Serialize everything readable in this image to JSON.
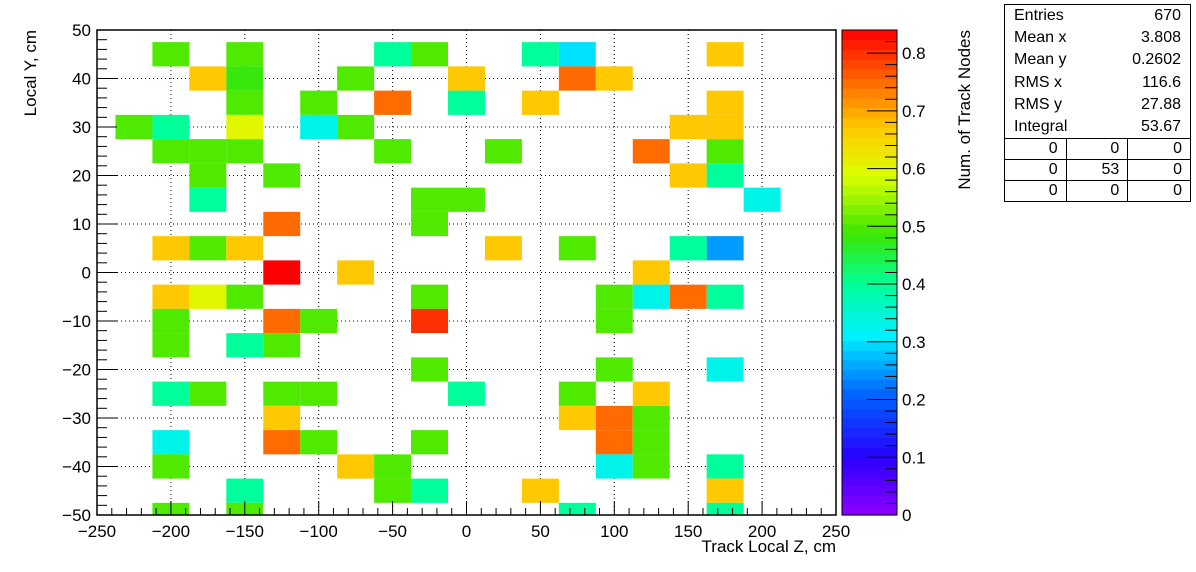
{
  "chart_data": {
    "type": "heatmap",
    "title": "",
    "xlabel": "Track Local Z, cm",
    "ylabel": "Local Y, cm",
    "zlabel": "Num. of Track Nodes",
    "xlim": [
      -250,
      250
    ],
    "ylim": [
      -50,
      50
    ],
    "zlim": [
      0,
      0.84
    ],
    "x_ticks": [
      -250,
      -200,
      -150,
      -100,
      -50,
      0,
      50,
      100,
      150,
      200,
      250
    ],
    "x_tick_labels": [
      "−250",
      "−200",
      "−150",
      "−100",
      "−50",
      "0",
      "50",
      "100",
      "150",
      "200",
      "250"
    ],
    "y_ticks": [
      50,
      40,
      30,
      20,
      10,
      0,
      -10,
      -20,
      -30,
      -40,
      -50
    ],
    "y_tick_labels": [
      "50",
      "40",
      "30",
      "20",
      "10",
      "0",
      "−10",
      "−20",
      "−30",
      "−40",
      "−50"
    ],
    "z_ticks": [
      0,
      0.1,
      0.2,
      0.3,
      0.4,
      0.5,
      0.6,
      0.7,
      0.8
    ],
    "z_tick_labels": [
      "0",
      "0.1",
      "0.2",
      "0.3",
      "0.4",
      "0.5",
      "0.6",
      "0.7",
      "0.8"
    ],
    "grid": true,
    "x_bin_edges": [
      -250,
      -225,
      -200,
      -175,
      -150,
      -125,
      -100,
      -75,
      -50,
      -25,
      0,
      25,
      50,
      75,
      100,
      125,
      150,
      175,
      200,
      225,
      250
    ],
    "y_bin_height": 5,
    "cells": [
      {
        "x": -200,
        "y": 45,
        "z": 0.5
      },
      {
        "x": -150,
        "y": 45,
        "z": 0.5
      },
      {
        "x": -50,
        "y": 45,
        "z": 0.4
      },
      {
        "x": -25,
        "y": 45,
        "z": 0.5
      },
      {
        "x": 50,
        "y": 45,
        "z": 0.4
      },
      {
        "x": 75,
        "y": 45,
        "z": 0.3
      },
      {
        "x": 175,
        "y": 45,
        "z": 0.67
      },
      {
        "x": -175,
        "y": 40,
        "z": 0.67
      },
      {
        "x": -150,
        "y": 40,
        "z": 0.48
      },
      {
        "x": -75,
        "y": 40,
        "z": 0.5
      },
      {
        "x": 0,
        "y": 40,
        "z": 0.67
      },
      {
        "x": 75,
        "y": 40,
        "z": 0.75
      },
      {
        "x": 100,
        "y": 40,
        "z": 0.67
      },
      {
        "x": -150,
        "y": 35,
        "z": 0.5
      },
      {
        "x": -100,
        "y": 35,
        "z": 0.5
      },
      {
        "x": -50,
        "y": 35,
        "z": 0.75
      },
      {
        "x": 0,
        "y": 35,
        "z": 0.4
      },
      {
        "x": 50,
        "y": 35,
        "z": 0.67
      },
      {
        "x": 175,
        "y": 35,
        "z": 0.67
      },
      {
        "x": -225,
        "y": 30,
        "z": 0.5
      },
      {
        "x": -200,
        "y": 30,
        "z": 0.4
      },
      {
        "x": -150,
        "y": 30,
        "z": 0.6
      },
      {
        "x": -100,
        "y": 30,
        "z": 0.33
      },
      {
        "x": -75,
        "y": 30,
        "z": 0.5
      },
      {
        "x": 150,
        "y": 30,
        "z": 0.67
      },
      {
        "x": 175,
        "y": 30,
        "z": 0.67
      },
      {
        "x": -200,
        "y": 25,
        "z": 0.5
      },
      {
        "x": -175,
        "y": 25,
        "z": 0.5
      },
      {
        "x": -150,
        "y": 25,
        "z": 0.5
      },
      {
        "x": -50,
        "y": 25,
        "z": 0.5
      },
      {
        "x": 25,
        "y": 25,
        "z": 0.5
      },
      {
        "x": 125,
        "y": 25,
        "z": 0.75
      },
      {
        "x": 175,
        "y": 25,
        "z": 0.5
      },
      {
        "x": -175,
        "y": 20,
        "z": 0.5
      },
      {
        "x": -125,
        "y": 20,
        "z": 0.5
      },
      {
        "x": 150,
        "y": 20,
        "z": 0.67
      },
      {
        "x": 175,
        "y": 20,
        "z": 0.4
      },
      {
        "x": -175,
        "y": 15,
        "z": 0.4
      },
      {
        "x": -25,
        "y": 15,
        "z": 0.5
      },
      {
        "x": 0,
        "y": 15,
        "z": 0.5
      },
      {
        "x": 200,
        "y": 15,
        "z": 0.33
      },
      {
        "x": -125,
        "y": 10,
        "z": 0.75
      },
      {
        "x": -25,
        "y": 10,
        "z": 0.5
      },
      {
        "x": -200,
        "y": 5,
        "z": 0.67
      },
      {
        "x": -175,
        "y": 5,
        "z": 0.5
      },
      {
        "x": -150,
        "y": 5,
        "z": 0.67
      },
      {
        "x": 25,
        "y": 5,
        "z": 0.67
      },
      {
        "x": 75,
        "y": 5,
        "z": 0.5
      },
      {
        "x": 150,
        "y": 5,
        "z": 0.4
      },
      {
        "x": 175,
        "y": 5,
        "z": 0.25
      },
      {
        "x": -125,
        "y": 0,
        "z": 0.84
      },
      {
        "x": -75,
        "y": 0,
        "z": 0.67
      },
      {
        "x": 125,
        "y": 0,
        "z": 0.67
      },
      {
        "x": -200,
        "y": -5,
        "z": 0.67
      },
      {
        "x": -175,
        "y": -5,
        "z": 0.6
      },
      {
        "x": -150,
        "y": -5,
        "z": 0.5
      },
      {
        "x": -25,
        "y": -5,
        "z": 0.5
      },
      {
        "x": 100,
        "y": -5,
        "z": 0.5
      },
      {
        "x": 125,
        "y": -5,
        "z": 0.33
      },
      {
        "x": 150,
        "y": -5,
        "z": 0.75
      },
      {
        "x": 175,
        "y": -5,
        "z": 0.4
      },
      {
        "x": -200,
        "y": -10,
        "z": 0.5
      },
      {
        "x": -125,
        "y": -10,
        "z": 0.75
      },
      {
        "x": -100,
        "y": -10,
        "z": 0.5
      },
      {
        "x": -25,
        "y": -10,
        "z": 0.8
      },
      {
        "x": 100,
        "y": -10,
        "z": 0.5
      },
      {
        "x": -200,
        "y": -15,
        "z": 0.5
      },
      {
        "x": -150,
        "y": -15,
        "z": 0.4
      },
      {
        "x": -125,
        "y": -15,
        "z": 0.5
      },
      {
        "x": -25,
        "y": -20,
        "z": 0.5
      },
      {
        "x": 100,
        "y": -20,
        "z": 0.5
      },
      {
        "x": 175,
        "y": -20,
        "z": 0.33
      },
      {
        "x": -200,
        "y": -25,
        "z": 0.4
      },
      {
        "x": -175,
        "y": -25,
        "z": 0.5
      },
      {
        "x": -125,
        "y": -25,
        "z": 0.5
      },
      {
        "x": -100,
        "y": -25,
        "z": 0.5
      },
      {
        "x": 0,
        "y": -25,
        "z": 0.4
      },
      {
        "x": 75,
        "y": -25,
        "z": 0.5
      },
      {
        "x": 125,
        "y": -25,
        "z": 0.67
      },
      {
        "x": -125,
        "y": -30,
        "z": 0.67
      },
      {
        "x": 75,
        "y": -30,
        "z": 0.67
      },
      {
        "x": 100,
        "y": -30,
        "z": 0.75
      },
      {
        "x": 125,
        "y": -30,
        "z": 0.5
      },
      {
        "x": -200,
        "y": -35,
        "z": 0.33
      },
      {
        "x": -125,
        "y": -35,
        "z": 0.75
      },
      {
        "x": -100,
        "y": -35,
        "z": 0.5
      },
      {
        "x": -25,
        "y": -35,
        "z": 0.5
      },
      {
        "x": 100,
        "y": -35,
        "z": 0.75
      },
      {
        "x": 125,
        "y": -35,
        "z": 0.5
      },
      {
        "x": -200,
        "y": -40,
        "z": 0.5
      },
      {
        "x": -75,
        "y": -40,
        "z": 0.67
      },
      {
        "x": -50,
        "y": -40,
        "z": 0.5
      },
      {
        "x": 100,
        "y": -40,
        "z": 0.33
      },
      {
        "x": 125,
        "y": -40,
        "z": 0.5
      },
      {
        "x": 175,
        "y": -40,
        "z": 0.4
      },
      {
        "x": -150,
        "y": -45,
        "z": 0.4
      },
      {
        "x": -50,
        "y": -45,
        "z": 0.5
      },
      {
        "x": -25,
        "y": -45,
        "z": 0.4
      },
      {
        "x": 50,
        "y": -45,
        "z": 0.67
      },
      {
        "x": 175,
        "y": -45,
        "z": 0.67
      },
      {
        "x": -200,
        "y": -50,
        "z": 0.5
      },
      {
        "x": -150,
        "y": -50,
        "z": 0.5
      },
      {
        "x": 75,
        "y": -50,
        "z": 0.4
      },
      {
        "x": 175,
        "y": -50,
        "z": 0.4
      }
    ]
  },
  "stats": {
    "rows": [
      {
        "label": "Entries",
        "value": "670"
      },
      {
        "label": "Mean x",
        "value": "3.808"
      },
      {
        "label": "Mean y",
        "value": "0.2602"
      },
      {
        "label": "RMS x",
        "value": "116.6"
      },
      {
        "label": "RMS y",
        "value": "27.88"
      },
      {
        "label": "Integral",
        "value": "53.67"
      }
    ],
    "grid": [
      [
        "0",
        "0",
        "0"
      ],
      [
        "0",
        "53",
        "0"
      ],
      [
        "0",
        "0",
        "0"
      ]
    ]
  }
}
